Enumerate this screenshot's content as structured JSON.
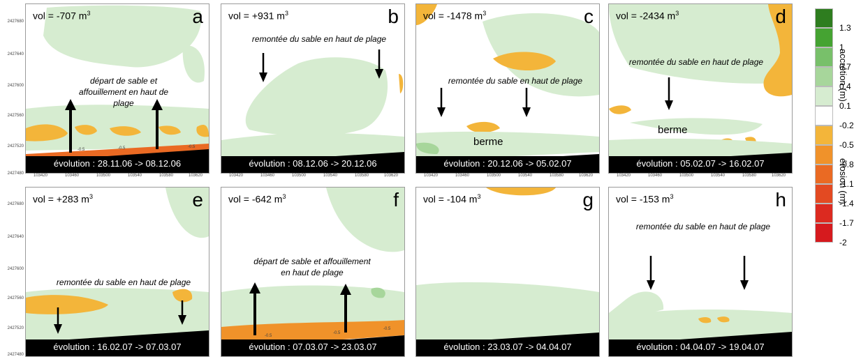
{
  "chart_data": {
    "type": "heatmap",
    "colorbar": {
      "ticks": [
        "1.3",
        "1",
        "0.7",
        "0.4",
        "0.1",
        "-0.2",
        "-0.5",
        "-0.8",
        "-1.1",
        "-1.4",
        "-1.7",
        "-2"
      ],
      "colors": [
        "#2e7d1f",
        "#45a332",
        "#78c06a",
        "#a7d69b",
        "#d6ecd0",
        "#ffffff",
        "#f3b53a",
        "#f0922a",
        "#ea6a23",
        "#e34a22",
        "#dc2a20",
        "#d61a1e"
      ],
      "label_accretion": "accrétion (m)",
      "label_erosion": "érosion (m)"
    },
    "y_ticks": [
      "2427680",
      "2427640",
      "2427600",
      "2427560",
      "2427520",
      "2427480"
    ],
    "x_ticks": [
      "103420",
      "103460",
      "103500",
      "103540",
      "103580",
      "103620"
    ],
    "panels": [
      {
        "letter": "a",
        "volume": -707,
        "vol_text": "vol = -707 m",
        "unit_sup": "3",
        "period": "évolution : 28.11.06 -> 08.12.06",
        "annotation": "départ de sable et affouillement en haut de plage",
        "berme": "",
        "contour_labels": [
          "-0.5",
          "-0.5",
          "-0.5"
        ]
      },
      {
        "letter": "b",
        "volume": 931,
        "vol_text": "vol = +931 m",
        "unit_sup": "3",
        "period": "évolution : 08.12.06 -> 20.12.06",
        "annotation": "remontée du sable en haut de plage",
        "berme": ""
      },
      {
        "letter": "c",
        "volume": -1478,
        "vol_text": "vol = -1478 m",
        "unit_sup": "3",
        "period": "évolution : 20.12.06 -> 05.02.07",
        "annotation": "remontée du sable en haut de plage",
        "berme": "berme"
      },
      {
        "letter": "d",
        "volume": -2434,
        "vol_text": "vol = -2434 m",
        "unit_sup": "3",
        "period": "évolution : 05.02.07 -> 16.02.07",
        "annotation": "remontée du sable en haut de plage",
        "berme": "berme"
      },
      {
        "letter": "e",
        "volume": 283,
        "vol_text": "vol = +283 m",
        "unit_sup": "3",
        "period": "évolution : 16.02.07 -> 07.03.07",
        "annotation": "remontée du sable en haut de plage",
        "berme": ""
      },
      {
        "letter": "f",
        "volume": -642,
        "vol_text": "vol = -642 m",
        "unit_sup": "3",
        "period": "évolution : 07.03.07 -> 23.03.07",
        "annotation": "départ de sable et affouillement en haut de plage",
        "berme": "",
        "contour_labels": [
          "-0.5",
          "-0.5",
          "-0.5"
        ]
      },
      {
        "letter": "g",
        "volume": -104,
        "vol_text": "vol = -104 m",
        "unit_sup": "3",
        "period": "évolution : 23.03.07 -> 04.04.07",
        "annotation": "",
        "berme": ""
      },
      {
        "letter": "h",
        "volume": -153,
        "vol_text": "vol = -153 m",
        "unit_sup": "3",
        "period": "évolution : 04.04.07 -> 19.04.07",
        "annotation": "remontée du sable en haut de plage",
        "berme": ""
      }
    ]
  }
}
